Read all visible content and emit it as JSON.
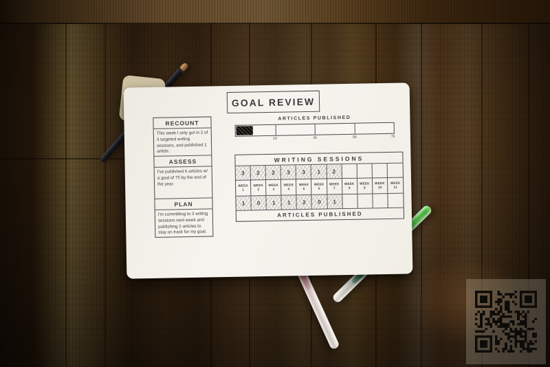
{
  "page": {
    "title": "GOAL REVIEW"
  },
  "review": {
    "sections": [
      {
        "label": "RECOUNT",
        "text": "This week I only got in 2 of 3 targeted writing sessions, and published 1 article."
      },
      {
        "label": "ASSESS",
        "text": "I've published 6 articles w/ a goal of 75 by the end of the year."
      },
      {
        "label": "PLAN",
        "text": "I'm committing to 3 writing sessions next week and publishing 2 articles to stay on track for my goal."
      }
    ]
  },
  "progress": {
    "label": "ARTICLES PUBLISHED",
    "ticks": [
      "19",
      "38",
      "56",
      "75"
    ]
  },
  "tracker": {
    "header": "WRITING SESSIONS",
    "footer": "ARTICLES PUBLISHED",
    "week_word": "WEEK",
    "week_numbers": [
      "1",
      "2",
      "3",
      "4",
      "5",
      "6",
      "7",
      "8",
      "9",
      "10",
      "11"
    ],
    "sessions": [
      "3",
      "2",
      "2",
      "3",
      "3",
      "1",
      "2",
      "",
      "",
      "",
      ""
    ],
    "articles": [
      "1",
      "0",
      "1",
      "1",
      "2",
      "0",
      "1",
      "",
      "",
      "",
      ""
    ]
  },
  "objects": {
    "black_pen": "black-pen",
    "red_pen": "red-gel-pen",
    "green_pen": "green-gel-pen",
    "qr": "qr-code"
  },
  "colors": {
    "paper": "#f4f1ea",
    "ink": "#3d3b40",
    "wood": "#3a2712",
    "red_pen_ink": "#c12a3e",
    "green_pen_cap": "#58cc4a"
  }
}
